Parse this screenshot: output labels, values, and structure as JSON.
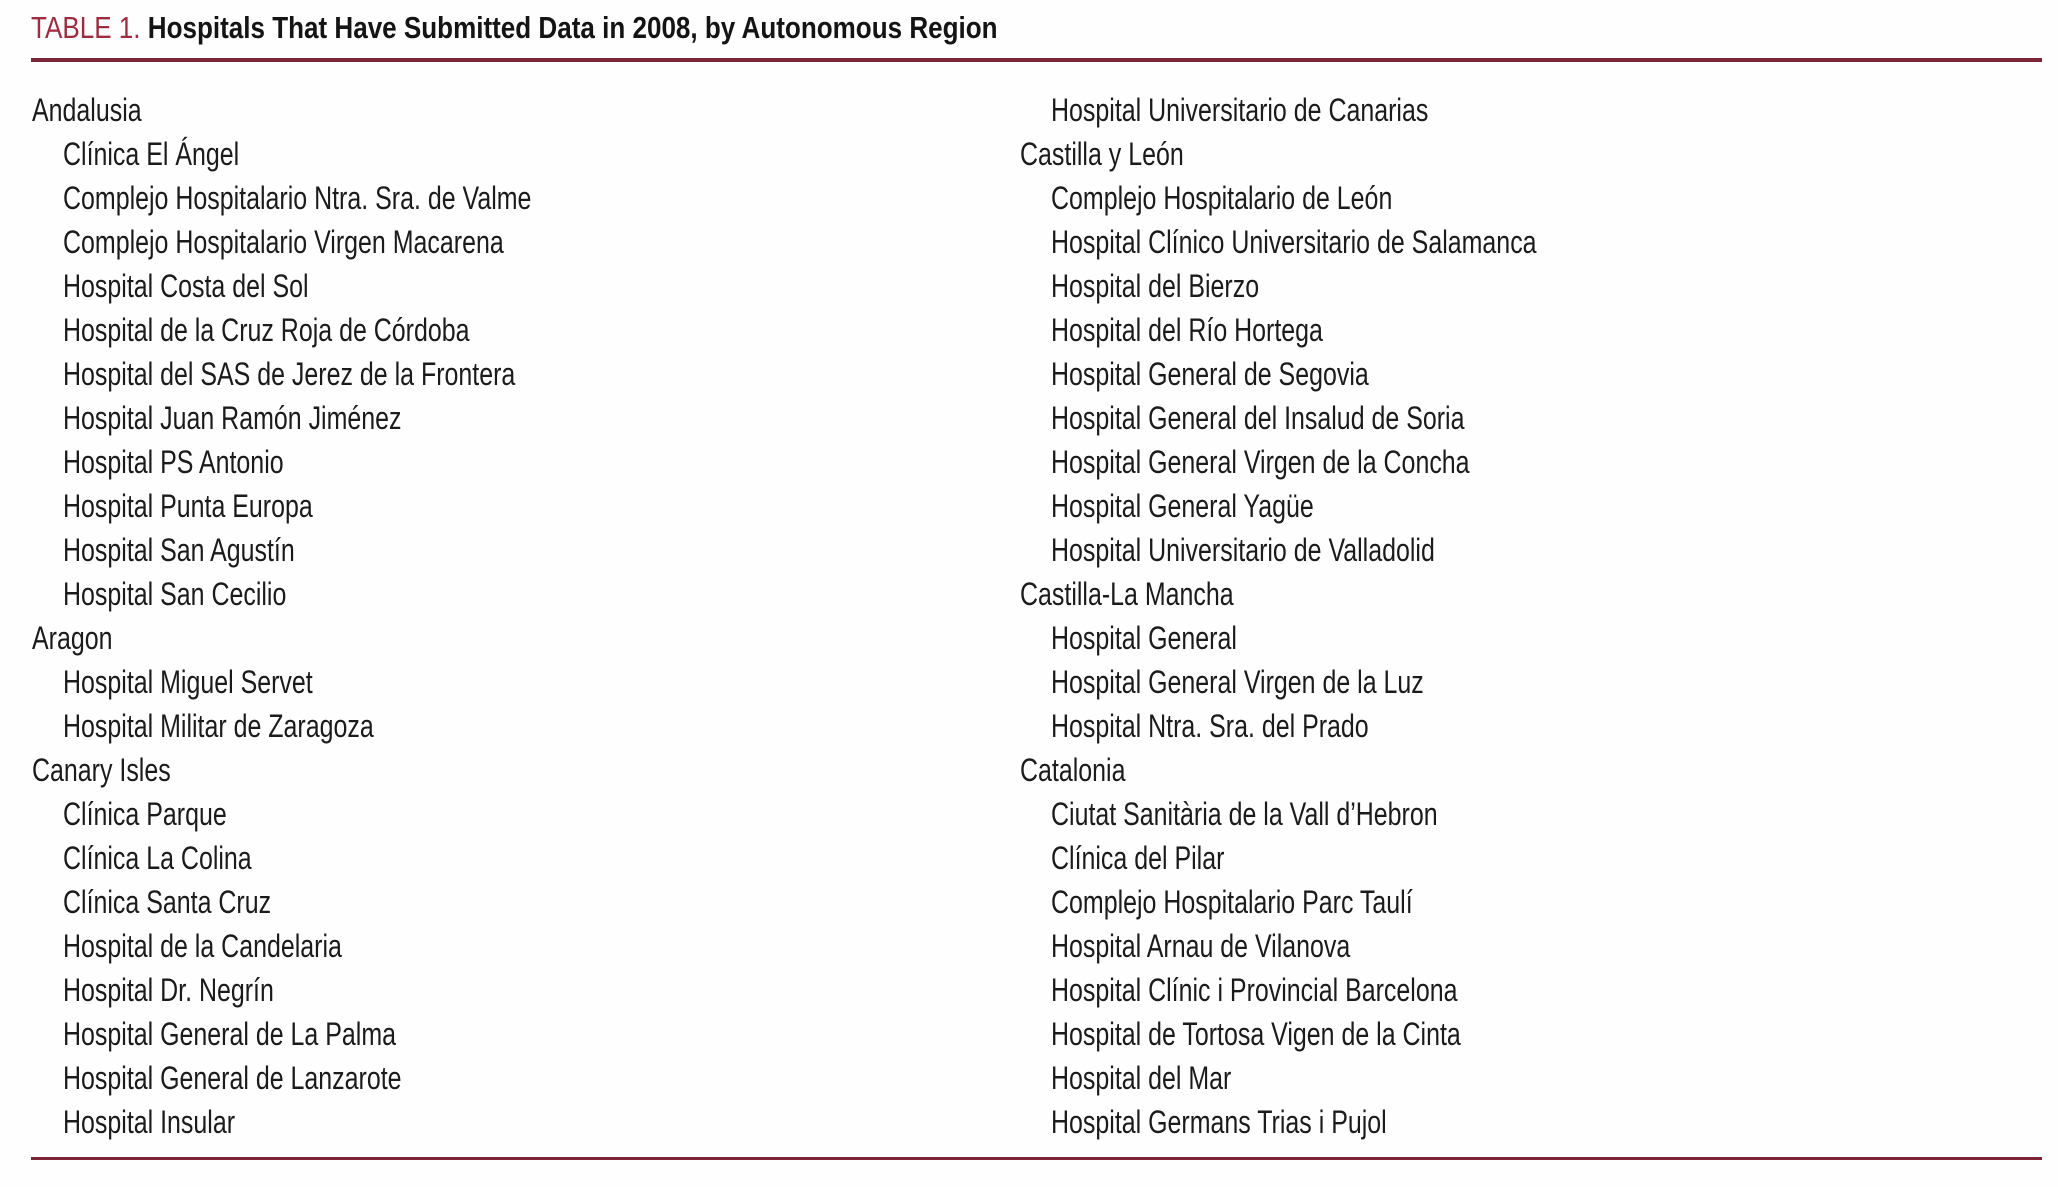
{
  "title": {
    "label": "TABLE 1.",
    "text": "Hospitals That Have Submitted Data in 2008, by Autonomous Region"
  },
  "colors": {
    "accent": "#9e2b40",
    "rule": "#7e2637",
    "text": "#1b1b1b",
    "background": "#fefefe"
  },
  "columns": [
    {
      "entries": [
        {
          "type": "region",
          "text": "Andalusia"
        },
        {
          "type": "hospital",
          "text": "Clínica El Ángel"
        },
        {
          "type": "hospital",
          "text": "Complejo Hospitalario Ntra. Sra. de Valme"
        },
        {
          "type": "hospital",
          "text": "Complejo Hospitalario Virgen Macarena"
        },
        {
          "type": "hospital",
          "text": "Hospital Costa del Sol"
        },
        {
          "type": "hospital",
          "text": "Hospital de la Cruz Roja de Córdoba"
        },
        {
          "type": "hospital",
          "text": "Hospital del SAS de Jerez de la Frontera"
        },
        {
          "type": "hospital",
          "text": "Hospital Juan Ramón Jiménez"
        },
        {
          "type": "hospital",
          "text": "Hospital PS Antonio"
        },
        {
          "type": "hospital",
          "text": "Hospital Punta Europa"
        },
        {
          "type": "hospital",
          "text": "Hospital San Agustín"
        },
        {
          "type": "hospital",
          "text": "Hospital San Cecilio"
        },
        {
          "type": "region",
          "text": "Aragon"
        },
        {
          "type": "hospital",
          "text": "Hospital Miguel Servet"
        },
        {
          "type": "hospital",
          "text": "Hospital Militar de Zaragoza"
        },
        {
          "type": "region",
          "text": "Canary Isles"
        },
        {
          "type": "hospital",
          "text": "Clínica Parque"
        },
        {
          "type": "hospital",
          "text": "Clínica La Colina"
        },
        {
          "type": "hospital",
          "text": "Clínica Santa Cruz"
        },
        {
          "type": "hospital",
          "text": "Hospital de la Candelaria"
        },
        {
          "type": "hospital",
          "text": "Hospital Dr. Negrín"
        },
        {
          "type": "hospital",
          "text": "Hospital General de La Palma"
        },
        {
          "type": "hospital",
          "text": "Hospital General de Lanzarote"
        },
        {
          "type": "hospital",
          "text": "Hospital Insular"
        }
      ]
    },
    {
      "entries": [
        {
          "type": "hospital",
          "text": "Hospital Universitario de Canarias"
        },
        {
          "type": "region",
          "text": "Castilla y León"
        },
        {
          "type": "hospital",
          "text": "Complejo Hospitalario de León"
        },
        {
          "type": "hospital",
          "text": "Hospital Clínico Universitario de Salamanca"
        },
        {
          "type": "hospital",
          "text": "Hospital del Bierzo"
        },
        {
          "type": "hospital",
          "text": "Hospital del Río Hortega"
        },
        {
          "type": "hospital",
          "text": "Hospital General de Segovia"
        },
        {
          "type": "hospital",
          "text": "Hospital General del Insalud de Soria"
        },
        {
          "type": "hospital",
          "text": "Hospital General Virgen de la Concha"
        },
        {
          "type": "hospital",
          "text": "Hospital General Yagüe"
        },
        {
          "type": "hospital",
          "text": "Hospital Universitario de Valladolid"
        },
        {
          "type": "region",
          "text": "Castilla-La Mancha"
        },
        {
          "type": "hospital",
          "text": "Hospital General"
        },
        {
          "type": "hospital",
          "text": "Hospital General Virgen de la Luz"
        },
        {
          "type": "hospital",
          "text": "Hospital Ntra. Sra. del Prado"
        },
        {
          "type": "region",
          "text": "Catalonia"
        },
        {
          "type": "hospital",
          "text": "Ciutat Sanitària de la Vall d’Hebron"
        },
        {
          "type": "hospital",
          "text": "Clínica del Pilar"
        },
        {
          "type": "hospital",
          "text": "Complejo Hospitalario Parc Taulí"
        },
        {
          "type": "hospital",
          "text": "Hospital Arnau de Vilanova"
        },
        {
          "type": "hospital",
          "text": "Hospital Clínic i Provincial Barcelona"
        },
        {
          "type": "hospital",
          "text": "Hospital de Tortosa Vigen de la Cinta"
        },
        {
          "type": "hospital",
          "text": "Hospital del Mar"
        },
        {
          "type": "hospital",
          "text": "Hospital Germans Trias i Pujol"
        }
      ]
    }
  ]
}
